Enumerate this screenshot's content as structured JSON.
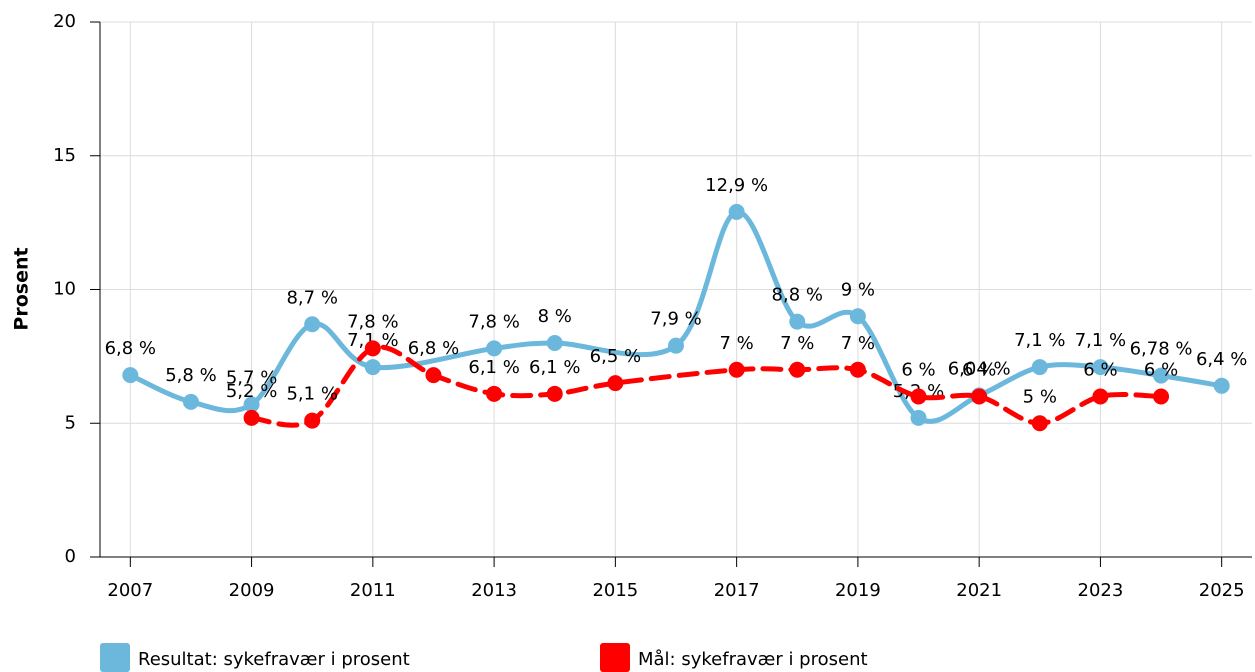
{
  "chart_data": {
    "type": "line",
    "ylabel": "Prosent",
    "xlim": [
      2006.5,
      2025.5
    ],
    "xticks": [
      2007,
      2009,
      2011,
      2013,
      2015,
      2017,
      2019,
      2021,
      2023,
      2025
    ],
    "ylim": [
      0,
      20
    ],
    "yticks": [
      0,
      5,
      10,
      15,
      20
    ],
    "grid": true,
    "series": [
      {
        "name": "Resultat: sykefravær i prosent",
        "color": "#6cb8dd",
        "dashed": false,
        "x": [
          2007,
          2008,
          2009,
          2010,
          2011,
          2013,
          2014,
          2016,
          2017,
          2018,
          2019,
          2020,
          2021,
          2022,
          2023,
          2024,
          2025
        ],
        "values": [
          6.8,
          5.8,
          5.7,
          8.7,
          7.1,
          7.8,
          8,
          7.9,
          12.9,
          8.8,
          9,
          5.2,
          6.04,
          7.1,
          7.1,
          6.78,
          6.4
        ],
        "value_labels": [
          "6,8 %",
          "5,8 %",
          "5,7 %",
          "8,7 %",
          "7,1 %",
          "7,8 %",
          "8 %",
          "7,9 %",
          "12,9 %",
          "8,8 %",
          "9 %",
          "5,2 %",
          "6,04 %",
          "7,1 %",
          "7,1 %",
          "6,78 %",
          "6,4 %"
        ]
      },
      {
        "name": "Mål: sykefravær i prosent",
        "color": "#ff0000",
        "dashed": true,
        "x": [
          2009,
          2010,
          2011,
          2012,
          2013,
          2014,
          2015,
          2017,
          2018,
          2019,
          2020,
          2021,
          2022,
          2023,
          2024
        ],
        "values": [
          5.2,
          5.1,
          7.8,
          6.8,
          6.1,
          6.1,
          6.5,
          7,
          7,
          7,
          6,
          6,
          5,
          6,
          6
        ],
        "value_labels": [
          "5,2 %",
          "5,1 %",
          "7,8 %",
          "6,8 %",
          "6,1 %",
          "6,1 %",
          "6,5 %",
          "7 %",
          "7 %",
          "7 %",
          "6 %",
          "6 %",
          "5 %",
          "6 %",
          "6 %"
        ]
      }
    ]
  }
}
